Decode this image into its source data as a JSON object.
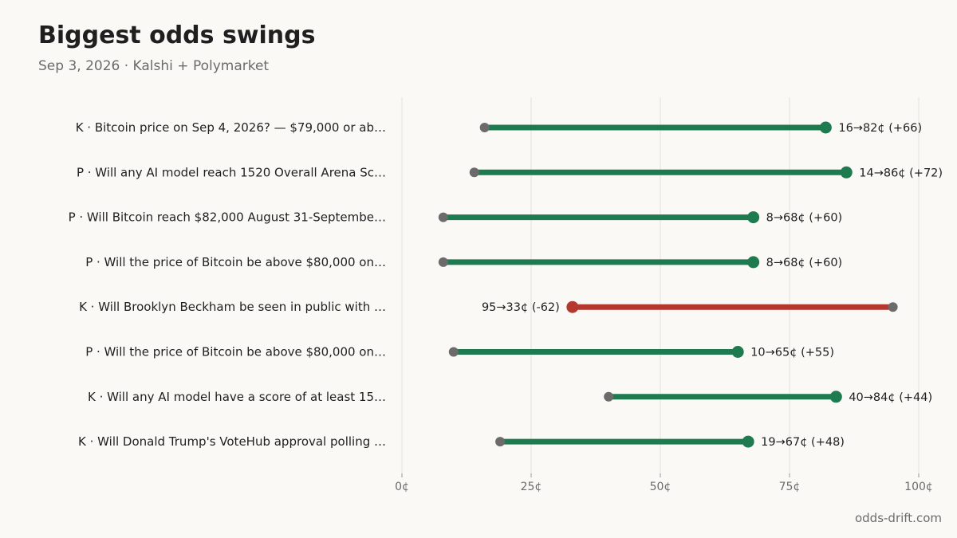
{
  "header": {
    "title": "Biggest odds swings",
    "subtitle": "Sep 3, 2026 · Kalshi + Polymarket"
  },
  "footer": {
    "site": "odds-drift.com"
  },
  "colors": {
    "up": "#1e7a4f",
    "down": "#b5382f",
    "start_dot": "#6b6b6b",
    "grid": "#e3e1dc",
    "text": "#1f1f1f",
    "muted": "#6b6b6b"
  },
  "chart_data": {
    "type": "dumbbell",
    "xlabel": "",
    "ylabel": "",
    "xlim": [
      0,
      100
    ],
    "x_ticks": [
      0,
      25,
      50,
      75,
      100
    ],
    "x_tick_labels": [
      "0¢",
      "25¢",
      "50¢",
      "75¢",
      "100¢"
    ],
    "grid": true,
    "rows": [
      {
        "label": "K · Bitcoin price on Sep 4, 2026? — $79,000 or ab…",
        "from": 16,
        "to": 82,
        "value_label": "16→82¢ (+66)"
      },
      {
        "label": "P · Will any AI model reach 1520 Overall Arena Sc…",
        "from": 14,
        "to": 86,
        "value_label": "14→86¢ (+72)"
      },
      {
        "label": "P · Will Bitcoin reach $82,000 August 31-Septembe…",
        "from": 8,
        "to": 68,
        "value_label": "8→68¢ (+60)"
      },
      {
        "label": "P · Will the price of Bitcoin be above $80,000 on…",
        "from": 8,
        "to": 68,
        "value_label": "8→68¢ (+60)"
      },
      {
        "label": "K · Will Brooklyn Beckham be seen in public with …",
        "from": 95,
        "to": 33,
        "value_label": "95→33¢ (-62)"
      },
      {
        "label": "P · Will the price of Bitcoin be above $80,000 on…",
        "from": 10,
        "to": 65,
        "value_label": "10→65¢ (+55)"
      },
      {
        "label": "K · Will any AI model have a score of at least 15…",
        "from": 40,
        "to": 84,
        "value_label": "40→84¢ (+44)"
      },
      {
        "label": "K · Will Donald Trump's VoteHub approval polling …",
        "from": 19,
        "to": 67,
        "value_label": "19→67¢ (+48)"
      }
    ]
  }
}
